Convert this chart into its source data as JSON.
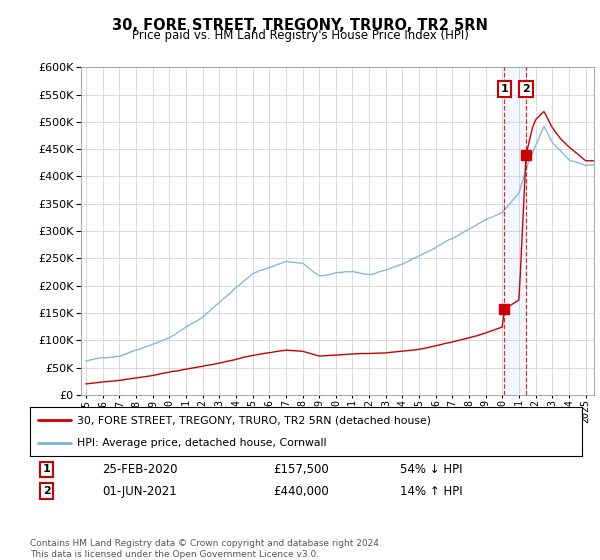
{
  "title": "30, FORE STREET, TREGONY, TRURO, TR2 5RN",
  "subtitle": "Price paid vs. HM Land Registry's House Price Index (HPI)",
  "legend_entry1": "30, FORE STREET, TREGONY, TRURO, TR2 5RN (detached house)",
  "legend_entry2": "HPI: Average price, detached house, Cornwall",
  "footer": "Contains HM Land Registry data © Crown copyright and database right 2024.\nThis data is licensed under the Open Government Licence v3.0.",
  "sale1_date": 2020.12,
  "sale1_label": "25-FEB-2020",
  "sale1_price": 157500,
  "sale1_text": "54% ↓ HPI",
  "sale2_date": 2021.42,
  "sale2_label": "01-JUN-2021",
  "sale2_price": 440000,
  "sale2_text": "14% ↑ HPI",
  "ylim": [
    0,
    600000
  ],
  "xlim": [
    1994.7,
    2025.5
  ],
  "hpi_color": "#7ab3d4",
  "price_color": "#cc0000",
  "shade_color": "#ddddff",
  "background_color": "#ffffff",
  "grid_color": "#cccccc"
}
